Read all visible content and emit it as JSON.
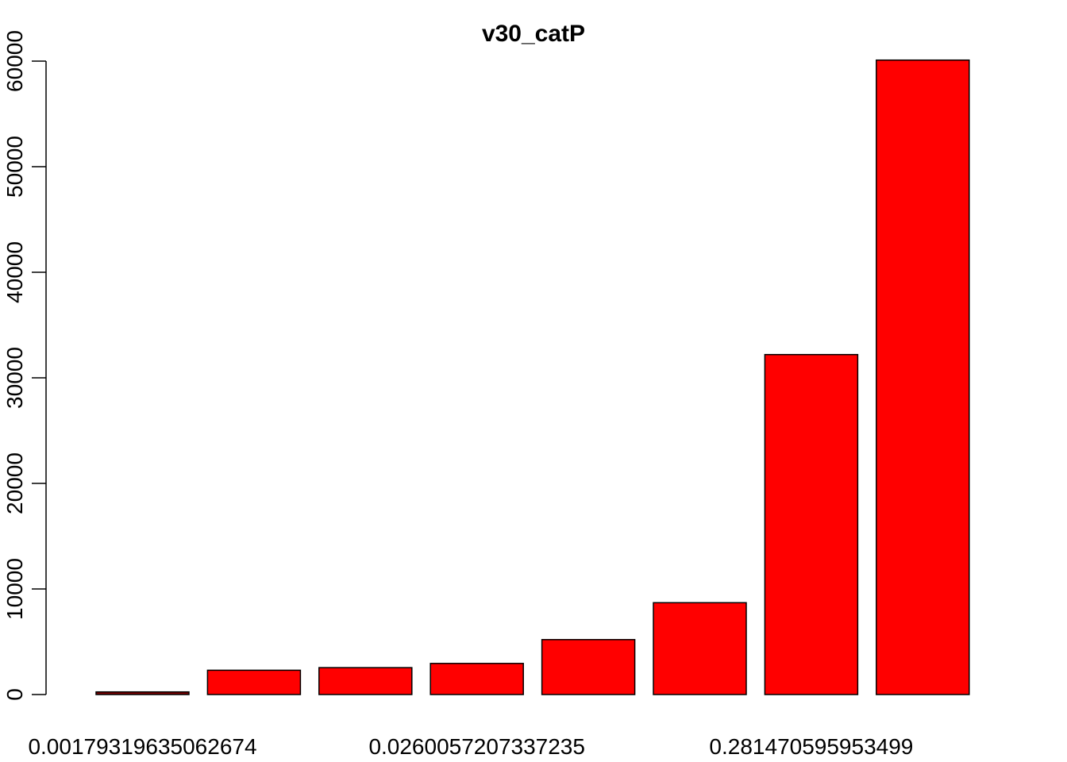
{
  "chart_data": {
    "type": "bar",
    "title": "v30_catP",
    "xlabel": "",
    "ylabel": "",
    "categories": [
      "0.00179319635062674",
      "",
      "",
      "0.0260057207337235",
      "",
      "",
      "0.281470595953499",
      ""
    ],
    "x_tick_labels_shown": [
      "0.00179319635062674",
      "0.0260057207337235",
      "0.281470595953499"
    ],
    "values": [
      250,
      2300,
      2550,
      2950,
      5200,
      8700,
      32200,
      60100
    ],
    "ylim": [
      0,
      60000
    ],
    "y_ticks": [
      0,
      10000,
      20000,
      30000,
      40000,
      50000,
      60000
    ],
    "bar_colors": [
      "#800000",
      "#ff0000",
      "#ff0000",
      "#ff0000",
      "#ff0000",
      "#ff0000",
      "#ff0000",
      "#ff0000"
    ],
    "bar_border_color": "#000000",
    "grid": false,
    "legend": "none"
  }
}
